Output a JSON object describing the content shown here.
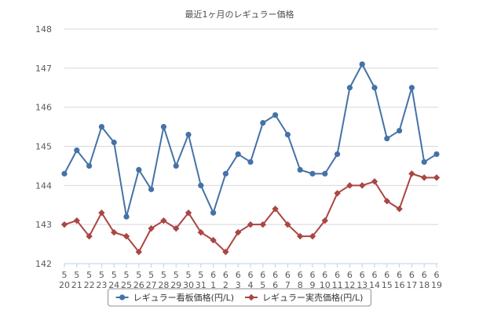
{
  "chart_data": {
    "type": "line",
    "title": "最近1ヶ月のレギュラー価格",
    "xlabel": "",
    "ylabel": "",
    "ylim": [
      142,
      148
    ],
    "yticks": [
      142,
      143,
      144,
      145,
      146,
      147,
      148
    ],
    "grid": true,
    "legend_position": "bottom",
    "categories": [
      {
        "month": "5",
        "day": "20"
      },
      {
        "month": "5",
        "day": "21"
      },
      {
        "month": "5",
        "day": "22"
      },
      {
        "month": "5",
        "day": "23"
      },
      {
        "month": "5",
        "day": "24"
      },
      {
        "month": "5",
        "day": "25"
      },
      {
        "month": "5",
        "day": "26"
      },
      {
        "month": "5",
        "day": "27"
      },
      {
        "month": "5",
        "day": "28"
      },
      {
        "month": "5",
        "day": "29"
      },
      {
        "month": "5",
        "day": "30"
      },
      {
        "month": "5",
        "day": "31"
      },
      {
        "month": "6",
        "day": "1"
      },
      {
        "month": "6",
        "day": "2"
      },
      {
        "month": "6",
        "day": "3"
      },
      {
        "month": "6",
        "day": "4"
      },
      {
        "month": "6",
        "day": "5"
      },
      {
        "month": "6",
        "day": "6"
      },
      {
        "month": "6",
        "day": "7"
      },
      {
        "month": "6",
        "day": "8"
      },
      {
        "month": "6",
        "day": "9"
      },
      {
        "month": "6",
        "day": "10"
      },
      {
        "month": "6",
        "day": "11"
      },
      {
        "month": "6",
        "day": "12"
      },
      {
        "month": "6",
        "day": "13"
      },
      {
        "month": "6",
        "day": "14"
      },
      {
        "month": "6",
        "day": "15"
      },
      {
        "month": "6",
        "day": "16"
      },
      {
        "month": "6",
        "day": "17"
      },
      {
        "month": "6",
        "day": "18"
      },
      {
        "month": "6",
        "day": "19"
      }
    ],
    "series": [
      {
        "name": "レギュラー看板価格(円/L)",
        "color": "#4572a7",
        "marker": "circle",
        "values": [
          144.3,
          144.9,
          144.5,
          145.5,
          145.1,
          143.2,
          144.4,
          143.9,
          145.5,
          144.5,
          145.3,
          144.0,
          143.3,
          144.3,
          144.8,
          144.6,
          145.6,
          145.8,
          145.3,
          144.4,
          144.3,
          144.3,
          144.8,
          146.5,
          147.1,
          146.5,
          145.2,
          145.4,
          146.5,
          144.6,
          144.8
        ]
      },
      {
        "name": "レギュラー実売価格(円/L)",
        "color": "#aa4643",
        "marker": "diamond",
        "values": [
          143.0,
          143.1,
          142.7,
          143.3,
          142.8,
          142.7,
          142.3,
          142.9,
          143.1,
          142.9,
          143.3,
          142.8,
          142.6,
          142.3,
          142.8,
          143.0,
          143.0,
          143.4,
          143.0,
          142.7,
          142.7,
          143.1,
          143.8,
          144.0,
          144.0,
          144.1,
          143.6,
          143.4,
          144.3,
          144.2,
          144.2
        ]
      }
    ]
  }
}
